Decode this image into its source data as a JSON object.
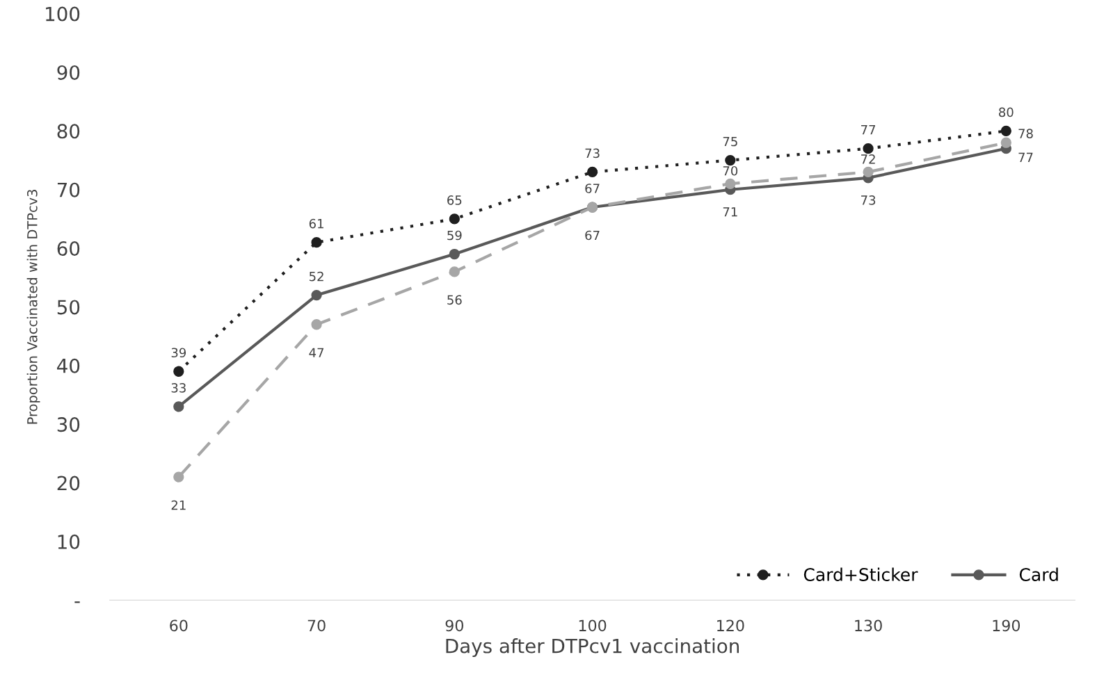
{
  "chart_data": {
    "type": "line",
    "xlabel": "Days after DTPcv1 vaccination",
    "ylabel": "Proportion Vaccinated with DTPcv3",
    "categories": [
      "60",
      "70",
      "90",
      "100",
      "120",
      "130",
      "190"
    ],
    "series": [
      {
        "name": "Card+Sticker",
        "color": "#1f1f1f",
        "line_style": "dotted",
        "values": [
          39,
          61,
          65,
          73,
          75,
          77,
          80
        ]
      },
      {
        "name": "Card",
        "color": "#595959",
        "line_style": "solid",
        "values": [
          33,
          52,
          59,
          67,
          70,
          72,
          77
        ]
      },
      {
        "color": "#a6a6a6",
        "line_style": "dashed",
        "values": [
          21,
          47,
          56,
          67,
          71,
          73,
          78
        ]
      }
    ],
    "ylim": [
      0,
      100
    ],
    "yticks": [
      {
        "value": 0,
        "label": "-"
      },
      10,
      20,
      30,
      40,
      50,
      60,
      70,
      80,
      90,
      100
    ],
    "marker": "circle",
    "data_labels": true,
    "grid": false,
    "legend": "bottom right"
  }
}
